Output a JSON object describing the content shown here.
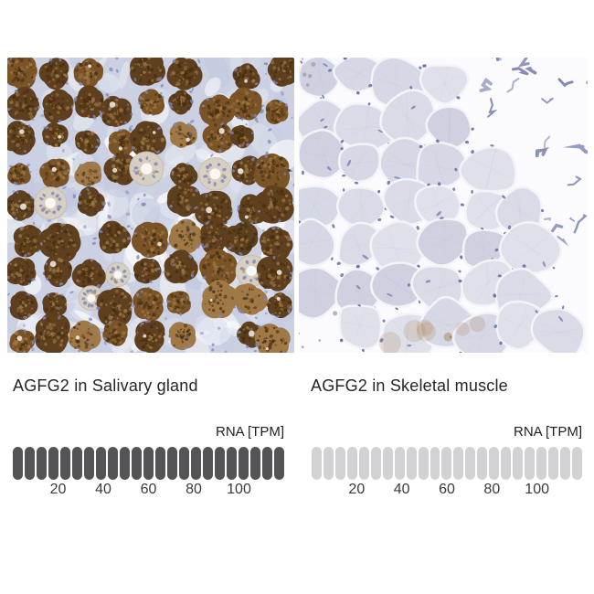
{
  "panels": [
    {
      "id": "salivary-gland",
      "caption": "AGFG2 in Salivary gland",
      "rna_label": "RNA [TPM]",
      "staining": "strong brown cytoplasmic staining of glandular acini",
      "scale": {
        "segment_count": 23,
        "filled_count": 23,
        "max_tpm": 120,
        "ticks": [
          20,
          40,
          60,
          80,
          100
        ],
        "filled_color": "#545456",
        "empty_color": "#d2d2d4"
      },
      "palette": {
        "stroma": "#cbd1e2",
        "stroma_light": "#eef0f5",
        "stroma_mid": "#dde1ee",
        "stroma_deep": "#c2c9de",
        "white": "#ffffff",
        "acinus_dark": "#5e3f1e",
        "acinus_mid": "#7a5427",
        "acinus_light": "#a07946",
        "granule": "#452e10",
        "nucleus": "#7e86b6",
        "duct_wall": "#d7cfc2",
        "duct_edge": "#c4bcae",
        "lumen": "#f8f7f3",
        "fleck": "#f3f1ec",
        "tan_dot": "#b3976b"
      }
    },
    {
      "id": "skeletal-muscle",
      "caption": "AGFG2 in Skeletal muscle",
      "rna_label": "RNA [TPM]",
      "staining": "negative; pale hematoxylin counterstained muscle fibers",
      "scale": {
        "segment_count": 23,
        "filled_count": 0,
        "max_tpm": 120,
        "ticks": [
          20,
          40,
          60,
          80,
          100
        ],
        "filled_color": "#545456",
        "empty_color": "#d2d2d4"
      },
      "palette": {
        "background": "#fbfbfd",
        "fiber": "#d7d8e5",
        "fiber_light": "#dfe0ea",
        "fiber_dark": "#d0d1e0",
        "fiber_alt": "#dadbe7",
        "border": "#f3f4f8",
        "nucleus": "#6e73a6",
        "debris": "#8e93bd",
        "debris_dark": "#7278a8",
        "speck": "#a5a0b0",
        "tinge": "#ab8558"
      }
    }
  ],
  "text_colors": {
    "caption": "#262626",
    "ticks": "#3a3a3a",
    "rna_label": "#1f1f1f"
  }
}
